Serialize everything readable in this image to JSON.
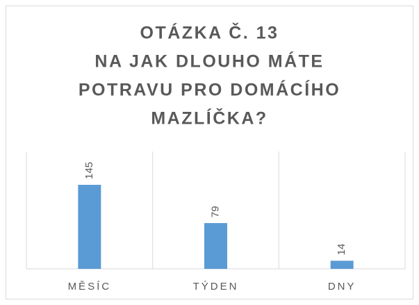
{
  "chart_data": {
    "type": "bar",
    "title": [
      "OTÁZKA Č. 13",
      "NA JAK DLOUHO MÁTE",
      "POTRAVU PRO DOMÁCÍHO",
      "MAZLÍČKA?"
    ],
    "categories": [
      "MĚSÍC",
      "TÝDEN",
      "DNY"
    ],
    "values": [
      145,
      79,
      14
    ],
    "color": "#5b9bd5"
  }
}
